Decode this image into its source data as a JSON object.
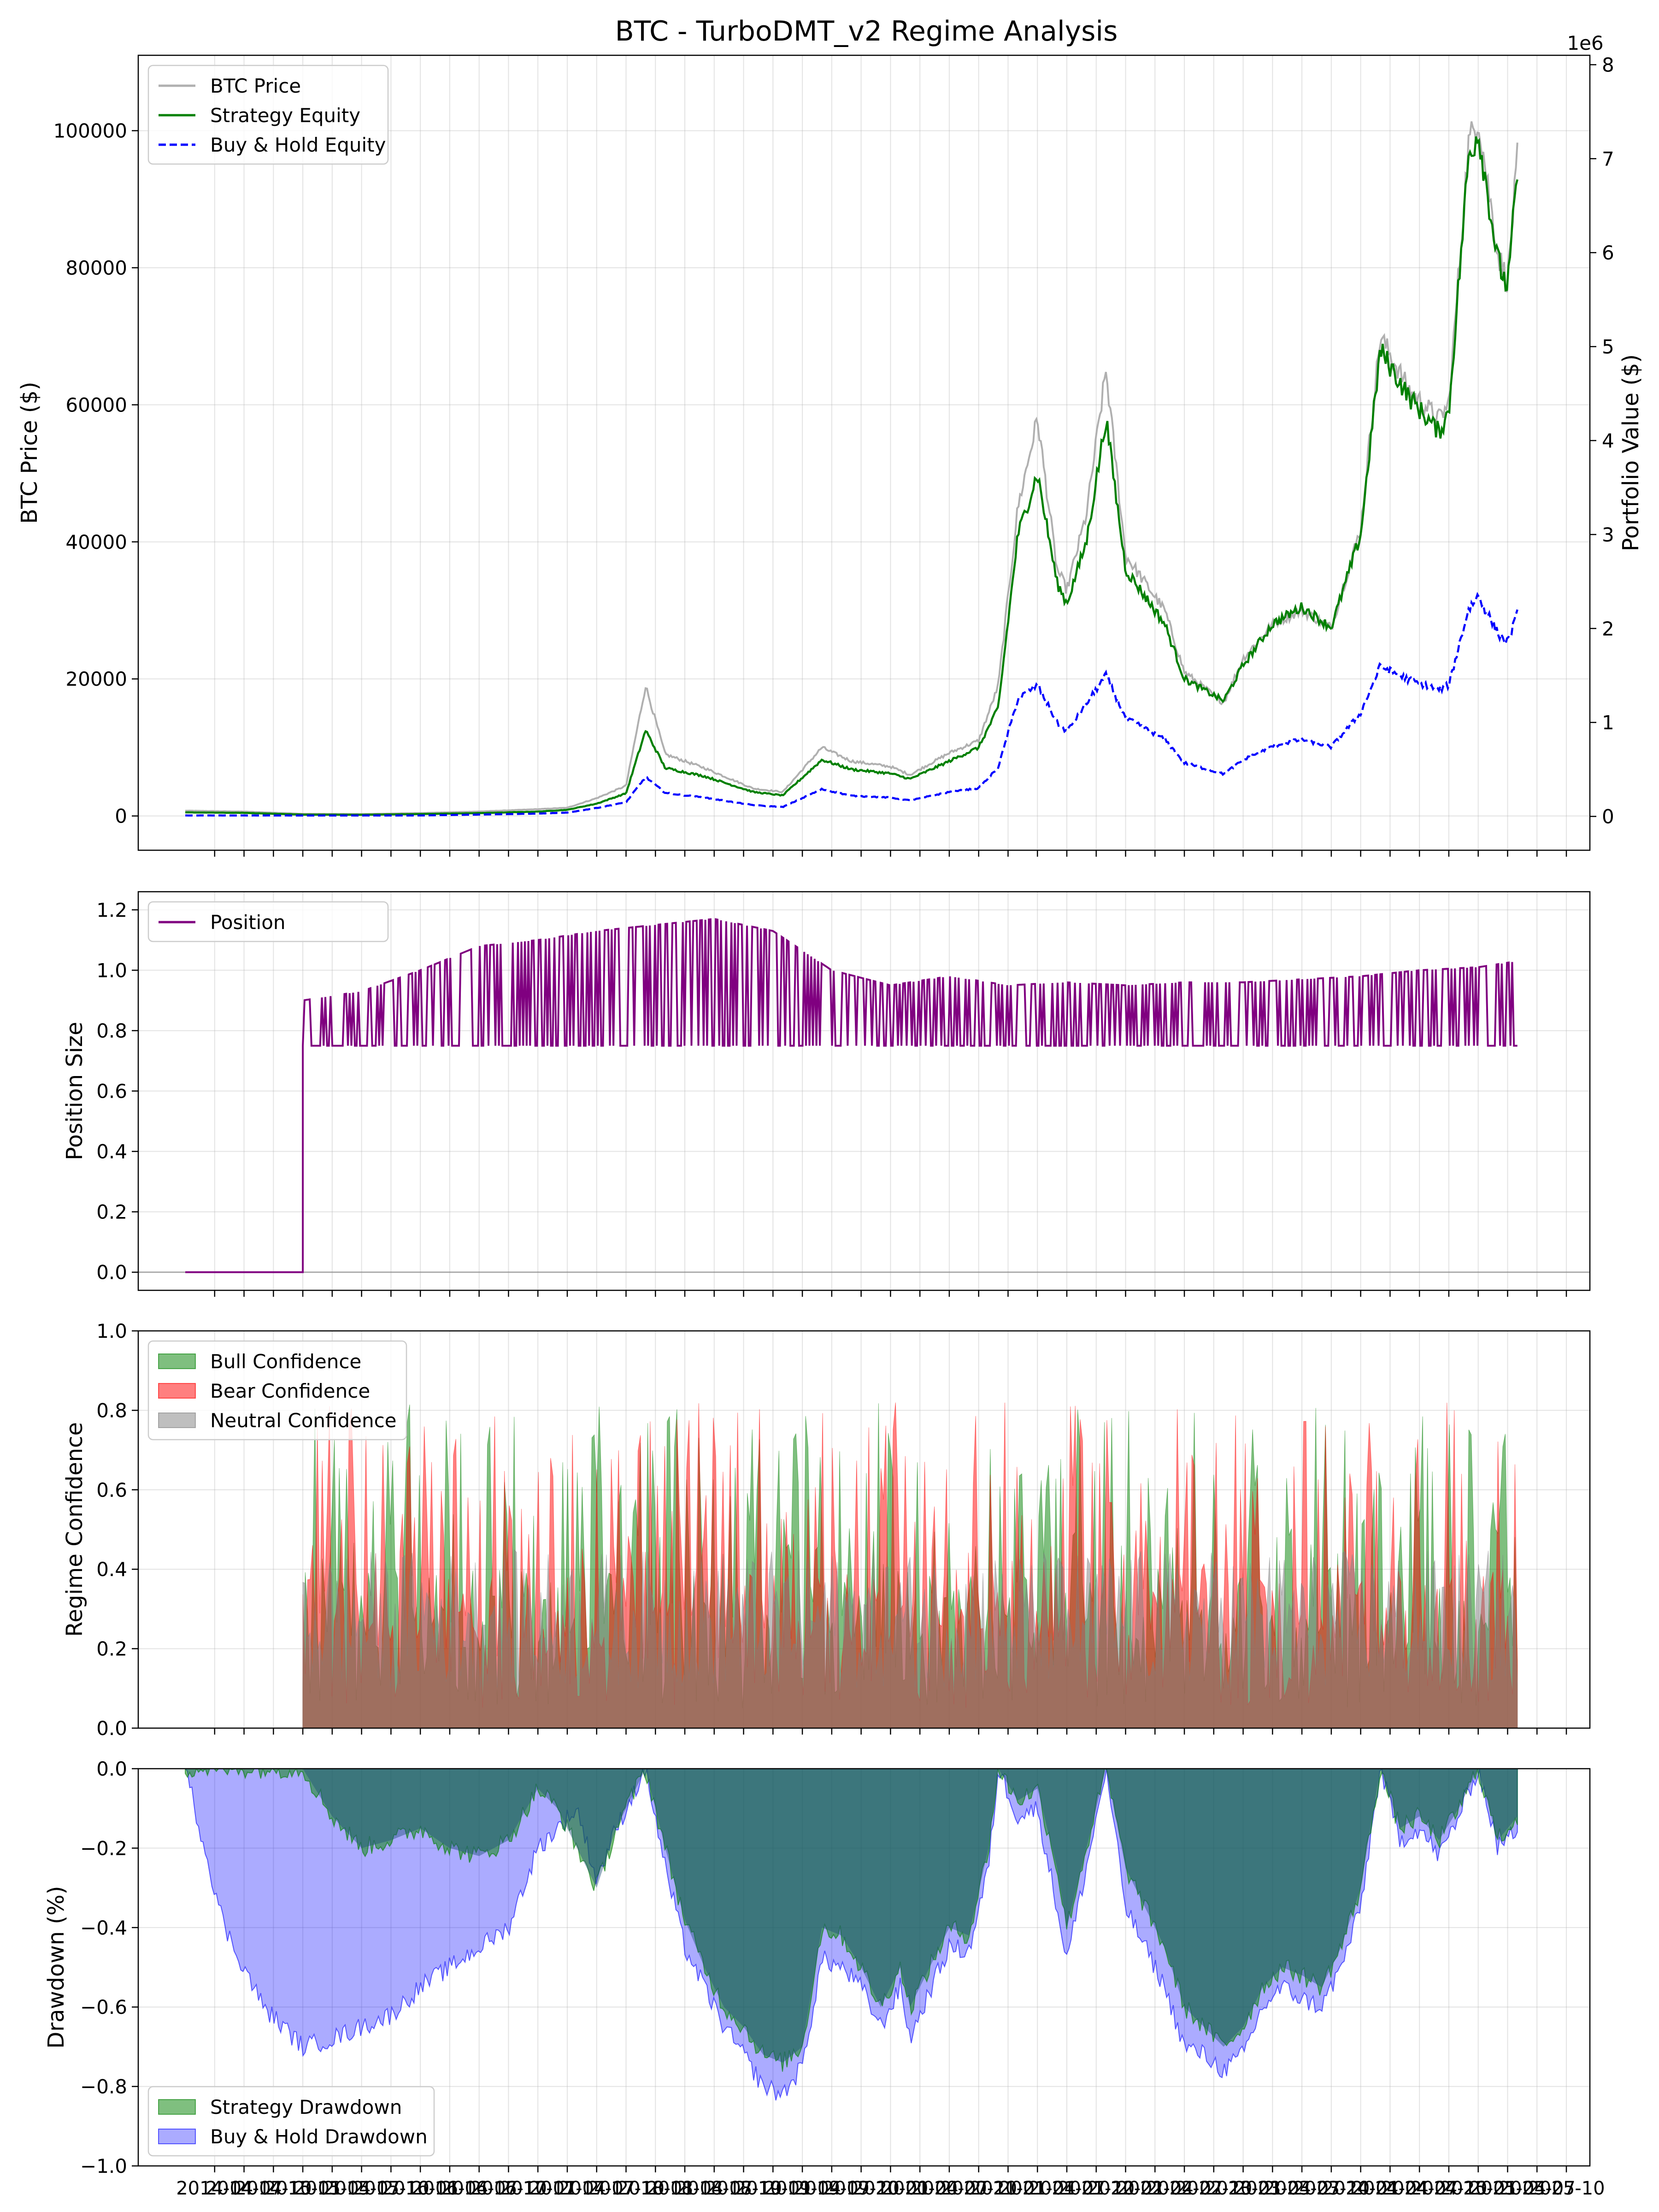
{
  "figure": {
    "title": "BTC - TurboDMT_v2 Regime Analysis",
    "x_tick_labels": [
      "2014-04",
      "2014-07",
      "2014-10",
      "2015-01",
      "2015-04",
      "2015-07",
      "2015-10",
      "2016-01",
      "2016-04",
      "2016-07",
      "2016-10",
      "2017-01",
      "2017-04",
      "2017-07",
      "2017-10",
      "2018-01",
      "2018-04",
      "2018-07",
      "2018-10",
      "2019-01",
      "2019-04",
      "2019-07",
      "2019-10",
      "2020-01",
      "2020-04",
      "2020-07",
      "2020-10",
      "2021-01",
      "2021-04",
      "2021-07",
      "2021-10",
      "2022-01",
      "2022-04",
      "2022-07",
      "2022-10",
      "2023-01",
      "2023-04",
      "2023-07",
      "2023-10",
      "2024-01",
      "2024-04",
      "2024-07",
      "2024-10",
      "2025-01",
      "2025-04",
      "2025-07",
      "2025-10"
    ]
  },
  "chart_data": [
    {
      "type": "line",
      "ylabel": "BTC Price ($)",
      "y2label": "Portfolio Value ($)",
      "y2_offset_text": "1e6",
      "ylim": [
        -5000,
        111000
      ],
      "y2lim": [
        -0.36,
        8.1
      ],
      "yticks": [
        0,
        20000,
        40000,
        60000,
        80000,
        100000
      ],
      "y2ticks": [
        0,
        1,
        2,
        3,
        4,
        5,
        6,
        7,
        8
      ],
      "grid": true,
      "legend_position": "top-left",
      "x": [
        "2014-01",
        "2014-07",
        "2015-01",
        "2015-07",
        "2016-01",
        "2016-07",
        "2017-01",
        "2017-04",
        "2017-07",
        "2017-10",
        "2017-12",
        "2018-02",
        "2018-06",
        "2018-11",
        "2019-02",
        "2019-06",
        "2019-09",
        "2020-01",
        "2020-03",
        "2020-07",
        "2020-10",
        "2020-12",
        "2021-02",
        "2021-04",
        "2021-06",
        "2021-07",
        "2021-09",
        "2021-11",
        "2022-01",
        "2022-05",
        "2022-07",
        "2022-11",
        "2023-01",
        "2023-04",
        "2023-07",
        "2023-10",
        "2024-01",
        "2024-03",
        "2024-06",
        "2024-09",
        "2024-10",
        "2024-12",
        "2025-01",
        "2025-03",
        "2025-04",
        "2025-05"
      ],
      "series": [
        {
          "name": "BTC Price",
          "color": "#b0b0b0",
          "axis": "left",
          "values": [
            770,
            640,
            315,
            280,
            430,
            650,
            990,
            1200,
            2600,
            4400,
            19000,
            9000,
            7000,
            4000,
            3500,
            10000,
            8000,
            7200,
            6000,
            9200,
            11000,
            19000,
            45000,
            58000,
            36000,
            33000,
            44000,
            65000,
            38000,
            30000,
            21000,
            16500,
            23000,
            28000,
            30000,
            27500,
            42000,
            70000,
            62000,
            58000,
            60000,
            98000,
            102000,
            82000,
            78000,
            96000
          ]
        },
        {
          "name": "Strategy Equity",
          "color": "#008000",
          "axis": "left",
          "values": [
            520,
            450,
            200,
            180,
            280,
            420,
            640,
            900,
            1800,
            3300,
            12500,
            7000,
            5800,
            3500,
            3000,
            8200,
            6800,
            6200,
            5400,
            8000,
            10000,
            15800,
            41000,
            50000,
            34000,
            31000,
            40000,
            58000,
            36000,
            28000,
            20000,
            16800,
            22000,
            28000,
            30500,
            27500,
            41000,
            68000,
            61000,
            56000,
            59000,
            96000,
            100000,
            81000,
            77000,
            94000
          ]
        },
        {
          "name": "Buy & Hold Equity",
          "color": "#0000ff",
          "axis": "right",
          "dashed": true,
          "values": [
            0.01,
            0.01,
            0.01,
            0.01,
            0.01,
            0.02,
            0.03,
            0.04,
            0.09,
            0.15,
            0.42,
            0.25,
            0.2,
            0.12,
            0.1,
            0.29,
            0.22,
            0.2,
            0.17,
            0.26,
            0.3,
            0.52,
            1.25,
            1.4,
            1.0,
            0.9,
            1.2,
            1.5,
            1.05,
            0.82,
            0.57,
            0.45,
            0.6,
            0.75,
            0.82,
            0.74,
            1.1,
            1.6,
            1.45,
            1.35,
            1.4,
            2.2,
            2.35,
            1.95,
            1.85,
            2.15
          ]
        }
      ]
    },
    {
      "type": "line",
      "ylabel": "Position Size",
      "ylim": [
        -0.06,
        1.26
      ],
      "yticks": [
        0.0,
        0.2,
        0.4,
        0.6,
        0.8,
        1.0,
        1.2
      ],
      "grid": true,
      "legend_position": "top-left",
      "x": [
        "2014-01",
        "2014-07",
        "2015-01",
        "2015-07",
        "2016-01",
        "2016-07",
        "2017-01",
        "2017-07",
        "2018-01",
        "2018-07",
        "2019-01",
        "2019-07",
        "2020-01",
        "2020-07",
        "2021-01",
        "2021-07",
        "2022-01",
        "2022-07",
        "2023-01",
        "2023-07",
        "2024-01",
        "2024-07",
        "2025-01",
        "2025-05"
      ],
      "baseline": 0,
      "series": [
        {
          "name": "Position",
          "color": "#800080",
          "values": [
            0,
            0,
            0.9,
            0.93,
            1.0,
            1.08,
            1.1,
            1.13,
            1.15,
            1.17,
            1.13,
            1.0,
            0.95,
            0.98,
            0.95,
            0.96,
            0.95,
            0.96,
            0.96,
            0.97,
            0.98,
            1.0,
            1.01,
            1.03
          ]
        }
      ],
      "position_low_value": 0.75,
      "position_start": "2015-01"
    },
    {
      "type": "area",
      "ylabel": "Regime Confidence",
      "ylim": [
        0,
        1
      ],
      "yticks": [
        0.0,
        0.2,
        0.4,
        0.6,
        0.8,
        1.0
      ],
      "grid": true,
      "legend_position": "top-left",
      "start": "2015-01",
      "end": "2025-05",
      "series": [
        {
          "name": "Bull Confidence",
          "color": "#008000",
          "opacity": 0.5,
          "max_value": 0.82
        },
        {
          "name": "Bear Confidence",
          "color": "#ff0000",
          "opacity": 0.5,
          "max_value": 0.82
        },
        {
          "name": "Neutral Confidence",
          "color": "#808080",
          "opacity": 0.5,
          "max_value": 0.45
        }
      ]
    },
    {
      "type": "area",
      "ylabel": "Drawdown (%)",
      "ylim": [
        -1.0,
        0.0
      ],
      "yticks": [
        -1.0,
        -0.8,
        -0.6,
        -0.4,
        -0.2,
        0.0
      ],
      "grid": true,
      "legend_position": "bottom-left",
      "x": [
        "2014-01",
        "2014-03",
        "2014-05",
        "2014-07",
        "2014-09",
        "2014-11",
        "2015-01",
        "2015-04",
        "2015-07",
        "2015-10",
        "2016-01",
        "2016-04",
        "2016-07",
        "2016-10",
        "2017-01",
        "2017-03",
        "2017-05",
        "2017-07",
        "2017-09",
        "2017-12",
        "2018-02",
        "2018-04",
        "2018-06",
        "2018-08",
        "2018-10",
        "2018-12",
        "2019-02",
        "2019-04",
        "2019-06",
        "2019-08",
        "2019-10",
        "2019-12",
        "2020-02",
        "2020-03",
        "2020-05",
        "2020-07",
        "2020-09",
        "2020-11",
        "2020-12",
        "2021-02",
        "2021-04",
        "2021-06",
        "2021-07",
        "2021-09",
        "2021-11",
        "2022-01",
        "2022-03",
        "2022-05",
        "2022-07",
        "2022-09",
        "2022-11",
        "2023-01",
        "2023-03",
        "2023-05",
        "2023-07",
        "2023-09",
        "2023-11",
        "2024-01",
        "2024-03",
        "2024-05",
        "2024-07",
        "2024-09",
        "2024-11",
        "2025-01",
        "2025-03",
        "2025-05"
      ],
      "series": [
        {
          "name": "Strategy Drawdown",
          "color": "#008000",
          "opacity": 0.5,
          "values": [
            0,
            0,
            0,
            0,
            0,
            0,
            0,
            -0.12,
            -0.2,
            -0.18,
            -0.15,
            -0.2,
            -0.22,
            -0.18,
            -0.05,
            -0.1,
            -0.2,
            -0.3,
            -0.15,
            0,
            -0.2,
            -0.38,
            -0.5,
            -0.6,
            -0.65,
            -0.72,
            -0.74,
            -0.7,
            -0.4,
            -0.42,
            -0.5,
            -0.6,
            -0.5,
            -0.6,
            -0.5,
            -0.4,
            -0.42,
            -0.2,
            0,
            -0.08,
            -0.05,
            -0.25,
            -0.4,
            -0.2,
            0,
            -0.25,
            -0.35,
            -0.45,
            -0.6,
            -0.65,
            -0.7,
            -0.65,
            -0.55,
            -0.5,
            -0.52,
            -0.55,
            -0.45,
            -0.3,
            0,
            -0.15,
            -0.12,
            -0.18,
            -0.1,
            0,
            -0.18,
            -0.12
          ]
        },
        {
          "name": "Buy & Hold Drawdown",
          "color": "#0000ff",
          "opacity": 0.33,
          "values": [
            0,
            -0.2,
            -0.4,
            -0.5,
            -0.6,
            -0.65,
            -0.7,
            -0.68,
            -0.65,
            -0.62,
            -0.55,
            -0.5,
            -0.45,
            -0.4,
            -0.2,
            -0.15,
            -0.1,
            -0.28,
            -0.15,
            0,
            -0.25,
            -0.45,
            -0.55,
            -0.65,
            -0.72,
            -0.8,
            -0.82,
            -0.75,
            -0.48,
            -0.5,
            -0.55,
            -0.65,
            -0.55,
            -0.68,
            -0.56,
            -0.45,
            -0.46,
            -0.25,
            0,
            -0.12,
            -0.1,
            -0.35,
            -0.48,
            -0.25,
            0,
            -0.35,
            -0.45,
            -0.55,
            -0.7,
            -0.72,
            -0.76,
            -0.72,
            -0.6,
            -0.55,
            -0.58,
            -0.6,
            -0.5,
            -0.35,
            0,
            -0.18,
            -0.15,
            -0.22,
            -0.12,
            0,
            -0.2,
            -0.15
          ]
        }
      ]
    }
  ]
}
